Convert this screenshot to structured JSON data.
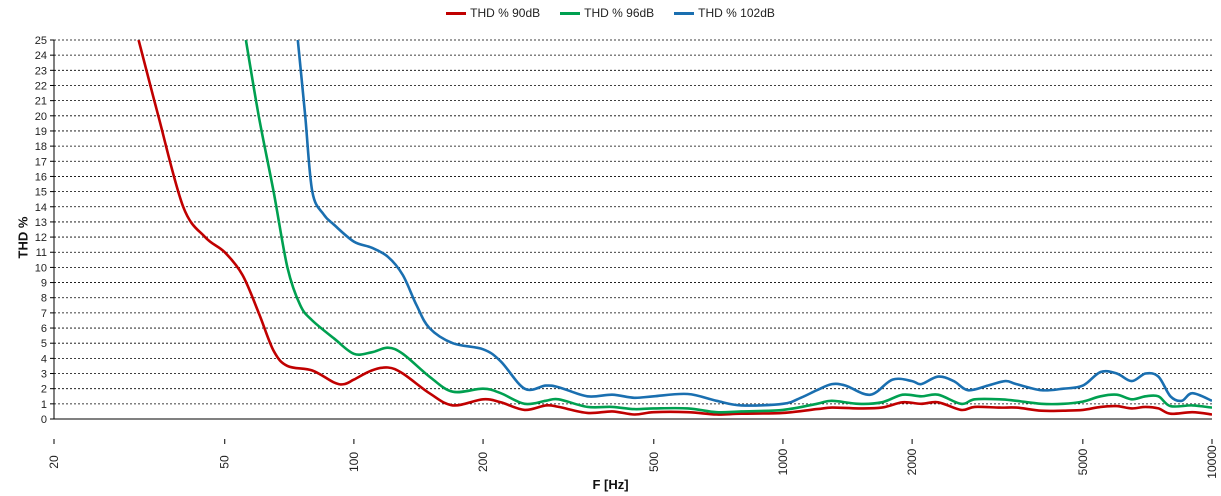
{
  "chart_data": {
    "type": "line",
    "title": "",
    "xlabel": "F [Hz]",
    "ylabel": "THD %",
    "x_scale": "log",
    "xlim": [
      20,
      10000
    ],
    "ylim": [
      0,
      25
    ],
    "x_ticks": [
      20,
      50,
      100,
      200,
      500,
      1000,
      2000,
      5000,
      10000
    ],
    "y_ticks": [
      0,
      1,
      2,
      3,
      4,
      5,
      6,
      7,
      8,
      9,
      10,
      11,
      12,
      13,
      14,
      15,
      16,
      17,
      18,
      19,
      20,
      21,
      22,
      23,
      24,
      25
    ],
    "grid": "horizontal dashed",
    "legend_position": "top-center",
    "series": [
      {
        "name": "THD % 90dB",
        "color": "#c00000",
        "points": [
          [
            31.5,
            25
          ],
          [
            35,
            20
          ],
          [
            40,
            14
          ],
          [
            45,
            12
          ],
          [
            50,
            11
          ],
          [
            55,
            9.5
          ],
          [
            60,
            7
          ],
          [
            65,
            4.5
          ],
          [
            70,
            3.5
          ],
          [
            80,
            3.2
          ],
          [
            90,
            2.4
          ],
          [
            95,
            2.3
          ],
          [
            100,
            2.6
          ],
          [
            110,
            3.2
          ],
          [
            120,
            3.4
          ],
          [
            130,
            3.0
          ],
          [
            150,
            1.7
          ],
          [
            170,
            0.9
          ],
          [
            200,
            1.3
          ],
          [
            220,
            1.1
          ],
          [
            250,
            0.6
          ],
          [
            280,
            0.9
          ],
          [
            300,
            0.8
          ],
          [
            350,
            0.4
          ],
          [
            400,
            0.5
          ],
          [
            450,
            0.3
          ],
          [
            500,
            0.45
          ],
          [
            600,
            0.45
          ],
          [
            700,
            0.3
          ],
          [
            800,
            0.35
          ],
          [
            1000,
            0.4
          ],
          [
            1200,
            0.65
          ],
          [
            1300,
            0.75
          ],
          [
            1500,
            0.7
          ],
          [
            1700,
            0.75
          ],
          [
            1900,
            1.1
          ],
          [
            2100,
            1.0
          ],
          [
            2300,
            1.1
          ],
          [
            2600,
            0.6
          ],
          [
            2800,
            0.8
          ],
          [
            3200,
            0.75
          ],
          [
            3500,
            0.75
          ],
          [
            4000,
            0.55
          ],
          [
            4500,
            0.55
          ],
          [
            5000,
            0.6
          ],
          [
            5500,
            0.8
          ],
          [
            6000,
            0.85
          ],
          [
            6500,
            0.7
          ],
          [
            7000,
            0.8
          ],
          [
            7500,
            0.7
          ],
          [
            8000,
            0.35
          ],
          [
            9000,
            0.45
          ],
          [
            10000,
            0.3
          ]
        ]
      },
      {
        "name": "THD % 96dB",
        "color": "#00a050",
        "points": [
          [
            56,
            25
          ],
          [
            60,
            20
          ],
          [
            65,
            15
          ],
          [
            70,
            10
          ],
          [
            75,
            7.5
          ],
          [
            80,
            6.5
          ],
          [
            90,
            5.3
          ],
          [
            100,
            4.3
          ],
          [
            110,
            4.4
          ],
          [
            120,
            4.7
          ],
          [
            130,
            4.3
          ],
          [
            150,
            2.8
          ],
          [
            170,
            1.8
          ],
          [
            200,
            2.0
          ],
          [
            220,
            1.7
          ],
          [
            250,
            1.0
          ],
          [
            280,
            1.2
          ],
          [
            300,
            1.3
          ],
          [
            350,
            0.8
          ],
          [
            400,
            0.8
          ],
          [
            450,
            0.65
          ],
          [
            500,
            0.7
          ],
          [
            600,
            0.7
          ],
          [
            700,
            0.45
          ],
          [
            800,
            0.5
          ],
          [
            1000,
            0.6
          ],
          [
            1200,
            1.0
          ],
          [
            1300,
            1.2
          ],
          [
            1500,
            1.0
          ],
          [
            1700,
            1.1
          ],
          [
            1900,
            1.6
          ],
          [
            2100,
            1.5
          ],
          [
            2300,
            1.6
          ],
          [
            2600,
            1.0
          ],
          [
            2800,
            1.3
          ],
          [
            3200,
            1.3
          ],
          [
            3500,
            1.2
          ],
          [
            4000,
            1.0
          ],
          [
            4500,
            1.0
          ],
          [
            5000,
            1.15
          ],
          [
            5500,
            1.5
          ],
          [
            6000,
            1.6
          ],
          [
            6500,
            1.3
          ],
          [
            7000,
            1.5
          ],
          [
            7500,
            1.5
          ],
          [
            8000,
            0.85
          ],
          [
            9000,
            0.9
          ],
          [
            10000,
            0.75
          ]
        ]
      },
      {
        "name": "THD % 102dB",
        "color": "#1a6fb0",
        "points": [
          [
            74,
            25
          ],
          [
            77,
            20
          ],
          [
            80,
            15
          ],
          [
            85,
            13.5
          ],
          [
            90,
            12.8
          ],
          [
            100,
            11.7
          ],
          [
            110,
            11.3
          ],
          [
            120,
            10.7
          ],
          [
            130,
            9.5
          ],
          [
            140,
            7.5
          ],
          [
            150,
            6.0
          ],
          [
            170,
            5.0
          ],
          [
            200,
            4.6
          ],
          [
            220,
            3.8
          ],
          [
            250,
            2.0
          ],
          [
            280,
            2.2
          ],
          [
            300,
            2.1
          ],
          [
            350,
            1.5
          ],
          [
            400,
            1.6
          ],
          [
            450,
            1.4
          ],
          [
            500,
            1.5
          ],
          [
            600,
            1.65
          ],
          [
            700,
            1.2
          ],
          [
            800,
            0.9
          ],
          [
            1000,
            1.0
          ],
          [
            1100,
            1.4
          ],
          [
            1200,
            1.9
          ],
          [
            1300,
            2.3
          ],
          [
            1400,
            2.2
          ],
          [
            1600,
            1.6
          ],
          [
            1800,
            2.6
          ],
          [
            2000,
            2.5
          ],
          [
            2100,
            2.3
          ],
          [
            2300,
            2.8
          ],
          [
            2500,
            2.5
          ],
          [
            2700,
            1.9
          ],
          [
            3000,
            2.2
          ],
          [
            3300,
            2.5
          ],
          [
            3500,
            2.3
          ],
          [
            4000,
            1.9
          ],
          [
            4500,
            2.0
          ],
          [
            5000,
            2.2
          ],
          [
            5500,
            3.1
          ],
          [
            6000,
            3.0
          ],
          [
            6500,
            2.5
          ],
          [
            7000,
            3.0
          ],
          [
            7500,
            2.8
          ],
          [
            8000,
            1.5
          ],
          [
            8500,
            1.2
          ],
          [
            9000,
            1.7
          ],
          [
            10000,
            1.2
          ]
        ]
      }
    ]
  }
}
